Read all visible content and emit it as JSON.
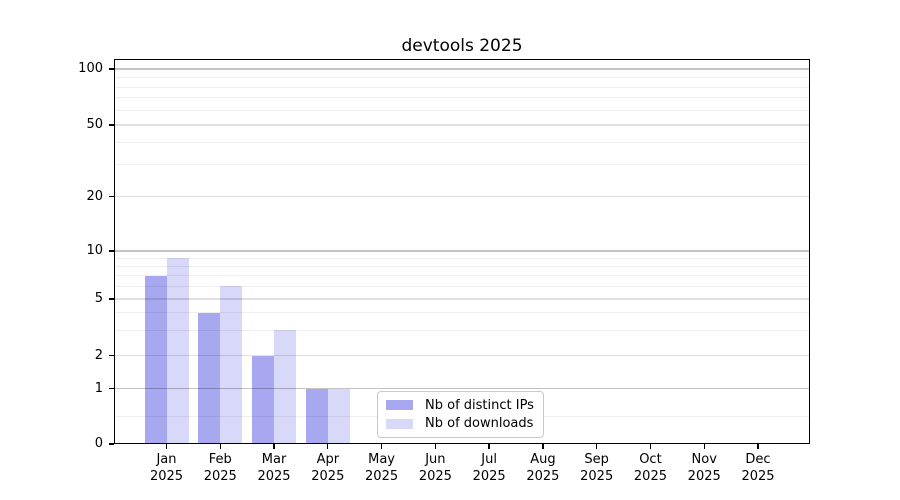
{
  "title": "devtools 2025",
  "colors": {
    "ips": "#a8a8f0",
    "downloads": "#d8d8f8",
    "spine": "#000000",
    "legend_border": "#c9c9c9"
  },
  "legend": {
    "items": [
      {
        "label": "Nb of distinct IPs",
        "series": "ips"
      },
      {
        "label": "Nb of downloads",
        "series": "downloads"
      }
    ]
  },
  "y_axis": {
    "tick_labels": [
      "0",
      "1",
      "2",
      "5",
      "10",
      "20",
      "50",
      "100"
    ]
  },
  "x_axis": {
    "year": "2025",
    "months": [
      "Jan",
      "Feb",
      "Mar",
      "Apr",
      "May",
      "Jun",
      "Jul",
      "Aug",
      "Sep",
      "Oct",
      "Nov",
      "Dec"
    ]
  },
  "chart_data": {
    "type": "bar",
    "title": "devtools 2025",
    "xlabel": "",
    "ylabel": "",
    "categories": [
      "Jan 2025",
      "Feb 2025",
      "Mar 2025",
      "Apr 2025",
      "May 2025",
      "Jun 2025",
      "Jul 2025",
      "Aug 2025",
      "Sep 2025",
      "Oct 2025",
      "Nov 2025",
      "Dec 2025"
    ],
    "series": [
      {
        "name": "Nb of distinct IPs",
        "color": "#a8a8f0",
        "values": [
          7,
          4,
          2,
          1,
          0,
          0,
          0,
          0,
          0,
          0,
          0,
          0
        ]
      },
      {
        "name": "Nb of downloads",
        "color": "#d8d8f8",
        "values": [
          9,
          6,
          3,
          1,
          0,
          0,
          0,
          0,
          0,
          0,
          0,
          0
        ]
      }
    ],
    "yscale": "log-like with linear 0-1 segment",
    "yticks": [
      0,
      1,
      2,
      5,
      10,
      20,
      50,
      100
    ],
    "ylim": [
      0,
      110
    ],
    "grid": true,
    "grid_minor_values": [
      0.5,
      3,
      4,
      6,
      7,
      8,
      9,
      30,
      40,
      60,
      70,
      80,
      90
    ],
    "grid_mid_values": [
      2,
      5,
      20,
      50
    ],
    "grid_major_values": [
      1,
      10,
      100
    ],
    "legend_position": "lower center"
  }
}
